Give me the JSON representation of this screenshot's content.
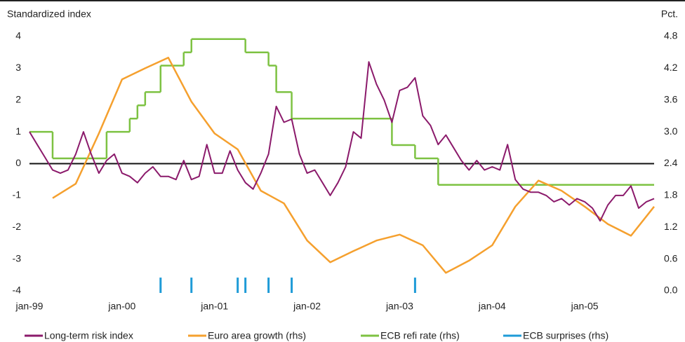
{
  "chart_data": {
    "type": "line",
    "y_label": "Standardized index",
    "y2_label": "Pct.",
    "xlim": [
      "1999-01",
      "2005-10"
    ],
    "xticks": [
      {
        "value": "1999-01",
        "label": "jan-99"
      },
      {
        "value": "2000-01",
        "label": "jan-00"
      },
      {
        "value": "2001-01",
        "label": "jan-01"
      },
      {
        "value": "2002-01",
        "label": "jan-02"
      },
      {
        "value": "2003-01",
        "label": "jan-03"
      },
      {
        "value": "2004-01",
        "label": "jan-04"
      },
      {
        "value": "2005-01",
        "label": "jan-05"
      }
    ],
    "ylim": [
      -4,
      4
    ],
    "yticks": [
      -4,
      -3,
      -2,
      -1,
      0,
      1,
      2,
      3,
      4
    ],
    "y2lim": [
      0,
      4.8
    ],
    "y2ticks": [
      {
        "value": 0,
        "label": "0.0"
      },
      0.6,
      1.2,
      1.8,
      2.4,
      {
        "value": 3,
        "label": "3.0"
      },
      3.6,
      4.2,
      4.8
    ],
    "legend": "bottom",
    "series": [
      {
        "name": "Long-term risk index",
        "color": "#8b1a6b",
        "style": "line",
        "x": [
          "1999-01",
          "1999-02",
          "1999-03",
          "1999-04",
          "1999-05",
          "1999-06",
          "1999-07",
          "1999-08",
          "1999-09",
          "1999-10",
          "1999-11",
          "1999-12",
          "2000-01",
          "2000-02",
          "2000-03",
          "2000-04",
          "2000-05",
          "2000-06",
          "2000-07",
          "2000-08",
          "2000-09",
          "2000-10",
          "2000-11",
          "2000-12",
          "2001-01",
          "2001-02",
          "2001-03",
          "2001-04",
          "2001-05",
          "2001-06",
          "2001-07",
          "2001-08",
          "2001-09",
          "2001-10",
          "2001-11",
          "2001-12",
          "2002-01",
          "2002-02",
          "2002-03",
          "2002-04",
          "2002-05",
          "2002-06",
          "2002-07",
          "2002-08",
          "2002-09",
          "2002-10",
          "2002-11",
          "2002-12",
          "2003-01",
          "2003-02",
          "2003-03",
          "2003-04",
          "2003-05",
          "2003-06",
          "2003-07",
          "2003-08",
          "2003-09",
          "2003-10",
          "2003-11",
          "2003-12",
          "2004-01",
          "2004-02",
          "2004-03",
          "2004-04",
          "2004-05",
          "2004-06",
          "2004-07",
          "2004-08",
          "2004-09",
          "2004-10",
          "2004-11",
          "2004-12",
          "2005-01",
          "2005-02",
          "2005-03",
          "2005-04",
          "2005-05",
          "2005-06",
          "2005-07",
          "2005-08",
          "2005-09",
          "2005-10"
        ],
        "values": [
          1.0,
          0.6,
          0.2,
          -0.2,
          -0.3,
          -0.2,
          0.3,
          1.0,
          0.3,
          -0.3,
          0.1,
          0.3,
          -0.3,
          -0.4,
          -0.6,
          -0.3,
          -0.1,
          -0.4,
          -0.4,
          -0.5,
          0.1,
          -0.5,
          -0.4,
          0.6,
          -0.3,
          -0.3,
          0.4,
          -0.2,
          -0.6,
          -0.8,
          -0.3,
          0.3,
          1.8,
          1.3,
          1.4,
          0.3,
          -0.3,
          -0.2,
          -0.6,
          -1.0,
          -0.6,
          -0.1,
          1.0,
          0.8,
          3.2,
          2.5,
          2.0,
          1.3,
          2.3,
          2.4,
          2.7,
          1.5,
          1.2,
          0.6,
          0.9,
          0.5,
          0.1,
          -0.2,
          0.1,
          -0.2,
          -0.1,
          -0.2,
          0.6,
          -0.5,
          -0.8,
          -0.9,
          -0.9,
          -1.0,
          -1.2,
          -1.1,
          -1.3,
          -1.1,
          -1.2,
          -1.4,
          -1.8,
          -1.3,
          -1.0,
          -1.0,
          -0.7,
          -1.4,
          -1.2,
          -1.1
        ]
      },
      {
        "name": "Euro area growth (rhs)",
        "color": "#f5a02e",
        "style": "line",
        "axis": "y2",
        "x": [
          "1999-04",
          "1999-07",
          "1999-10",
          "2000-01",
          "2000-04",
          "2000-07",
          "2000-10",
          "2001-01",
          "2001-04",
          "2001-07",
          "2001-10",
          "2002-01",
          "2002-04",
          "2002-07",
          "2002-10",
          "2003-01",
          "2003-04",
          "2003-07",
          "2003-10",
          "2004-01",
          "2004-04",
          "2004-07",
          "2004-10",
          "2005-01",
          "2005-04",
          "2005-07",
          "2005-10"
        ],
        "values": [
          1.75,
          2.02,
          2.97,
          3.99,
          4.2,
          4.4,
          3.57,
          2.97,
          2.67,
          1.89,
          1.65,
          0.95,
          0.54,
          0.75,
          0.95,
          1.06,
          0.86,
          0.34,
          0.57,
          0.86,
          1.59,
          2.08,
          1.89,
          1.59,
          1.26,
          1.04,
          1.59
        ]
      },
      {
        "name": "ECB refi rate (rhs)",
        "color": "#7dc242",
        "style": "step",
        "axis": "y2",
        "x": [
          "1999-01",
          "1999-04",
          "1999-11",
          "2000-02",
          "2000-03",
          "2000-04",
          "2000-06",
          "2000-09",
          "2000-10",
          "2001-05",
          "2001-08",
          "2001-09",
          "2001-11",
          "2002-12",
          "2003-03",
          "2003-06",
          "2005-10"
        ],
        "values": [
          3.0,
          2.5,
          3.0,
          3.25,
          3.5,
          3.75,
          4.25,
          4.5,
          4.75,
          4.5,
          4.25,
          3.75,
          3.25,
          2.75,
          2.5,
          2.0,
          2.0
        ]
      },
      {
        "name": "ECB surprises (rhs)",
        "color": "#1e9bd7",
        "style": "bar",
        "axis": "y2",
        "x": [
          "2000-06",
          "2000-10",
          "2001-04",
          "2001-05",
          "2001-08",
          "2001-11",
          "2003-03"
        ],
        "values": [
          0.25,
          0.25,
          0.25,
          0.25,
          0.25,
          0.25,
          0.25
        ]
      }
    ]
  }
}
